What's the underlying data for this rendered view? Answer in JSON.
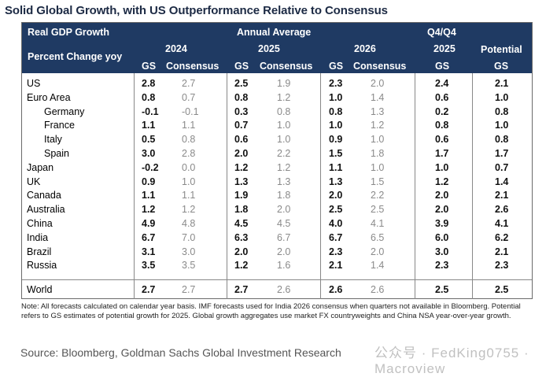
{
  "title": "Solid Global Growth, with US Outperformance Relative to Consensus",
  "header": {
    "row_label_1": "Real GDP Growth",
    "row_label_2": "Percent Change yoy",
    "annual_average": "Annual Average",
    "q4q4": "Q4/Q4",
    "year_2024": "2024",
    "year_2025": "2025",
    "year_2026": "2026",
    "q4_2025": "2025",
    "potential": "Potential",
    "gs": "GS",
    "consensus": "Consensus"
  },
  "rows": [
    {
      "label": "US",
      "v": [
        "2.8",
        "2.7",
        "2.5",
        "1.9",
        "2.3",
        "2.0",
        "2.4",
        "2.1"
      ]
    },
    {
      "label": "Euro Area",
      "v": [
        "0.8",
        "0.7",
        "0.8",
        "1.2",
        "1.0",
        "1.4",
        "0.6",
        "1.0"
      ]
    },
    {
      "label": "Germany",
      "v": [
        "-0.1",
        "-0.1",
        "0.3",
        "0.8",
        "0.8",
        "1.3",
        "0.2",
        "0.8"
      ]
    },
    {
      "label": "France",
      "v": [
        "1.1",
        "1.1",
        "0.7",
        "1.0",
        "1.0",
        "1.2",
        "0.8",
        "1.0"
      ]
    },
    {
      "label": "Italy",
      "v": [
        "0.5",
        "0.8",
        "0.6",
        "1.0",
        "0.9",
        "1.0",
        "0.6",
        "0.8"
      ]
    },
    {
      "label": "Spain",
      "v": [
        "3.0",
        "2.8",
        "2.0",
        "2.2",
        "1.5",
        "1.8",
        "1.7",
        "1.7"
      ]
    },
    {
      "label": "Japan",
      "v": [
        "-0.2",
        "0.0",
        "1.2",
        "1.2",
        "1.1",
        "1.0",
        "1.0",
        "0.7"
      ]
    },
    {
      "label": "UK",
      "v": [
        "0.9",
        "1.0",
        "1.3",
        "1.3",
        "1.3",
        "1.5",
        "1.2",
        "1.4"
      ]
    },
    {
      "label": "Canada",
      "v": [
        "1.1",
        "1.1",
        "1.9",
        "1.8",
        "2.0",
        "2.2",
        "2.0",
        "2.1"
      ]
    },
    {
      "label": "Australia",
      "v": [
        "1.2",
        "1.2",
        "1.8",
        "2.0",
        "2.5",
        "2.5",
        "2.0",
        "2.6"
      ]
    },
    {
      "label": "China",
      "v": [
        "4.9",
        "4.8",
        "4.5",
        "4.5",
        "4.0",
        "4.1",
        "3.9",
        "4.1"
      ]
    },
    {
      "label": "India",
      "v": [
        "6.7",
        "7.0",
        "6.3",
        "6.7",
        "6.7",
        "6.5",
        "6.0",
        "6.2"
      ]
    },
    {
      "label": "Brazil",
      "v": [
        "3.1",
        "3.0",
        "2.0",
        "2.0",
        "2.3",
        "2.0",
        "3.0",
        "2.1"
      ]
    },
    {
      "label": "Russia",
      "v": [
        "3.5",
        "3.5",
        "1.2",
        "1.6",
        "2.1",
        "1.4",
        "2.3",
        "2.3"
      ]
    }
  ],
  "world": {
    "label": "World",
    "v": [
      "2.7",
      "2.7",
      "2.7",
      "2.6",
      "2.6",
      "2.6",
      "2.5",
      "2.5"
    ]
  },
  "note": "Note: All forecasts calculated on calendar year basis. IMF forecasts used for India 2026 consensus when quarters not available in Bloomberg. Potential refers to GS estimates of potential growth for 2025. Global growth aggregates use market FX countryweights and China NSA year-over-year growth.",
  "source": "Source: Bloomberg, Goldman Sachs Global Investment Research",
  "watermark": "公众号 · FedKing0755 · Macroview"
}
